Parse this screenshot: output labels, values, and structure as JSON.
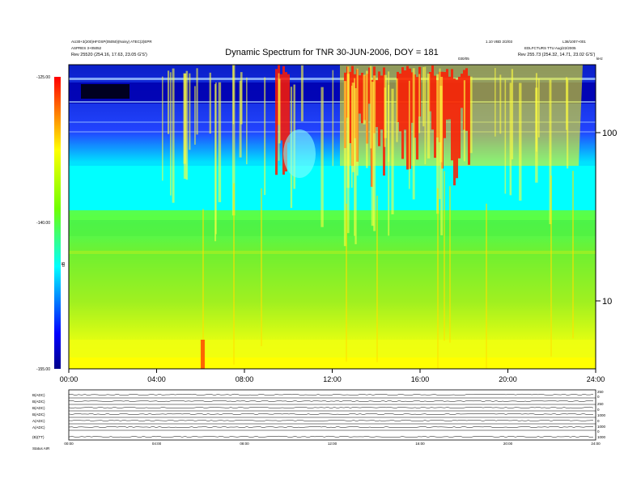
{
  "header": {
    "left_line1": "AU30+3(200)HFOSP(05050)(Noisy) ATEC(2)EPR",
    "left_line2": "ASPRES 3+05052",
    "rev_left": "Rev  25520 (254.16, 17.63, 23.05 G'S')",
    "right_top1": "1.10 VBD 2/2/03",
    "right_top2": "L38/1007+001",
    "right_line2": "EDLFCTURS TTU Aug/22/2005",
    "rev_right": "Rev  255.73 (254.32, 14.71, 23.02 G'S')",
    "center_small": "030/05",
    "mhz_label": "kHz"
  },
  "chart_data": {
    "type": "heatmap",
    "title": "Dynamic Spectrum for TNR 30-JUN-2006, DOY = 181",
    "x_ticks": [
      "00:00",
      "04:00",
      "08:00",
      "12:00",
      "16:00",
      "20:00",
      "24:00"
    ],
    "y_ticks": [
      "100",
      "10"
    ],
    "y_scale": "log",
    "colorbar_ticks": [
      "-125.00",
      "-140.00",
      "-155.00"
    ],
    "colorbar_label": "dB",
    "colorbar_range": [
      -155,
      -125
    ],
    "colorscale": [
      "#00008a",
      "#0000ff",
      "#00ffff",
      "#70ff00",
      "#ffff00",
      "#ff0000"
    ]
  },
  "panel_labels": [
    "B(ADC)",
    "B(ADC)",
    "B(ADC)",
    "B(ADC)",
    "A(ADC)",
    "A(ADC)",
    "(B)(TT)"
  ],
  "panel_right_ticks": [
    "250",
    "0",
    "250",
    "0",
    "1000",
    "0",
    "1000",
    "0",
    "1000"
  ],
  "bottom_ticks": [
    "00:00",
    "04:00",
    "08:00",
    "12:00",
    "16:00",
    "20:00",
    "24:00"
  ],
  "bottom_left": "Status   AIR"
}
